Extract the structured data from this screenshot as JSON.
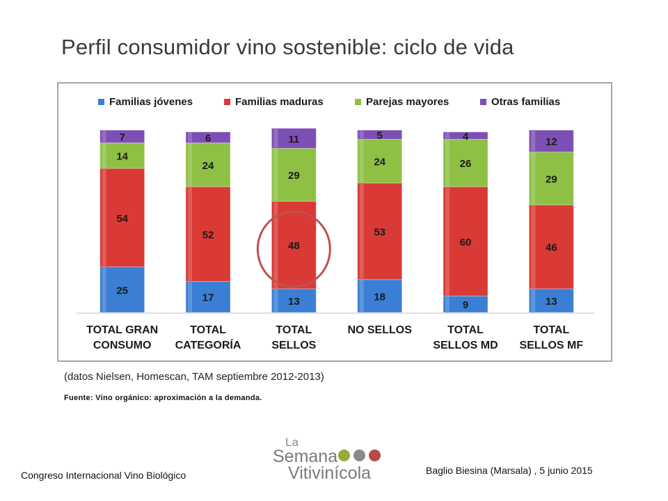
{
  "slide": {
    "title": "Perfil consumidor vino sostenible: ciclo de vida",
    "note": "(datos Nielsen, Homescan, TAM septiembre 2012-2013)",
    "source": "Fuente: Vino orgánico: aproximación a la demanda.",
    "footer_left": "Congreso Internacional Vino Biológico",
    "footer_right": "Baglio Biesina (Marsala) ,  5 junio 2015",
    "logo": {
      "line1": "La",
      "line2": "Semana",
      "line3": "Vitivinícola"
    }
  },
  "chart_data": {
    "type": "bar",
    "stacked": true,
    "categories": [
      [
        "TOTAL GRAN",
        "CONSUMO"
      ],
      [
        "TOTAL",
        "CATEGORÍA"
      ],
      [
        "TOTAL",
        "SELLOS"
      ],
      [
        "NO SELLOS"
      ],
      [
        "TOTAL",
        "SELLOS MD"
      ],
      [
        "TOTAL",
        "SELLOS MF"
      ]
    ],
    "series": [
      {
        "name": "Familias jóvenes",
        "color": "#3b7fd4",
        "values": [
          25,
          17,
          13,
          18,
          9,
          13
        ]
      },
      {
        "name": "Familias maduras",
        "color": "#d93a35",
        "values": [
          54,
          52,
          48,
          53,
          60,
          46
        ]
      },
      {
        "name": "Parejas mayores",
        "color": "#8ec044",
        "values": [
          14,
          24,
          29,
          24,
          26,
          29
        ]
      },
      {
        "name": "Otras familias",
        "color": "#7d4fb5",
        "values": [
          7,
          6,
          11,
          5,
          4,
          12
        ]
      }
    ],
    "ylim": [
      0,
      100
    ],
    "legend_position": "top",
    "grid": false,
    "highlight": {
      "category_index": 2,
      "series_index": 1,
      "color": "#c0504d"
    }
  }
}
